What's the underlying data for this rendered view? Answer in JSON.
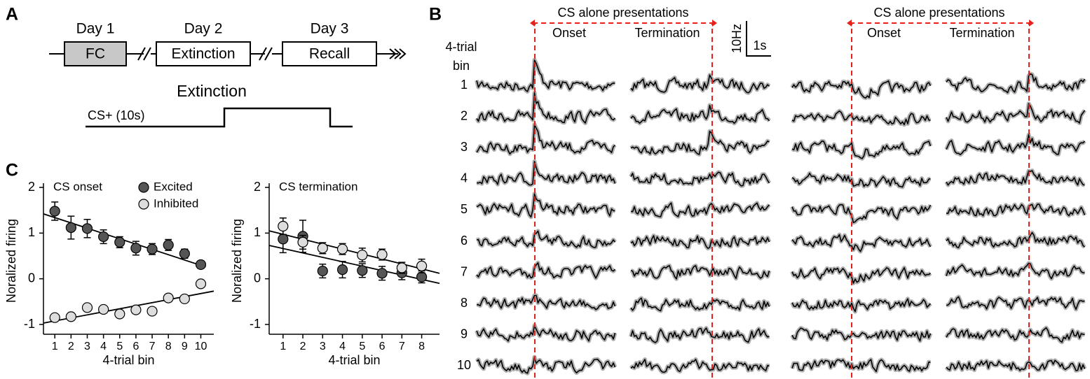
{
  "panel_a": {
    "label": "A",
    "days": [
      "Day 1",
      "Day 2",
      "Day 3"
    ],
    "boxes": [
      "FC",
      "Extinction",
      "Recall"
    ],
    "protocol_title": "Extinction",
    "cs_label": "CS+ (10s)"
  },
  "panel_b": {
    "label": "B",
    "bracket_title": "CS alone presentations",
    "onset": "Onset",
    "termination": "Termination",
    "scale_y": "10Hz",
    "scale_x": "1s",
    "row_title": [
      "4-trial",
      "bin"
    ],
    "rows": [
      "1",
      "2",
      "3",
      "4",
      "5",
      "6",
      "7",
      "8",
      "9",
      "10"
    ]
  },
  "panel_c_label": "C",
  "chart_data": [
    {
      "type": "scatter",
      "title": "CS onset",
      "x_label": "4-trial bin",
      "y_label": "Noralized firing",
      "x": [
        1,
        2,
        3,
        4,
        5,
        6,
        7,
        8,
        9,
        10
      ],
      "series": [
        {
          "name": "Excited",
          "color": "#555555",
          "values": [
            1.48,
            1.12,
            1.1,
            0.92,
            0.8,
            0.67,
            0.65,
            0.74,
            0.55,
            0.31
          ],
          "errors": [
            0.2,
            0.25,
            0.2,
            0.15,
            0.12,
            0.15,
            0.12,
            0.12,
            0.1,
            0.08
          ]
        },
        {
          "name": "Inhibited",
          "color": "#dddddd",
          "values": [
            -0.85,
            -0.83,
            -0.63,
            -0.67,
            -0.77,
            -0.68,
            -0.71,
            -0.42,
            -0.44,
            -0.11
          ],
          "errors": [
            0.04,
            0.05,
            0.04,
            0.04,
            0.04,
            0.04,
            0.04,
            0.04,
            0.04,
            0.05
          ]
        }
      ],
      "trendlines": [
        {
          "x": [
            0.3,
            10.3
          ],
          "values": [
            1.42,
            0.26
          ]
        },
        {
          "x": [
            0.3,
            10.8
          ],
          "values": [
            -0.97,
            -0.27
          ]
        }
      ],
      "xlim": [
        0.3,
        10.8
      ],
      "ylim": [
        -1,
        2
      ],
      "xticks": [
        1,
        2,
        3,
        4,
        5,
        6,
        7,
        8,
        9,
        10
      ],
      "yticks": [
        -1,
        0,
        1,
        2
      ],
      "legend": "upper right"
    },
    {
      "type": "scatter",
      "title": "CS termination",
      "x_label": "4-trial bin",
      "y_label": "Noralized firing",
      "x": [
        1,
        2,
        3,
        4,
        5,
        6,
        7,
        8
      ],
      "series": [
        {
          "color": "#555555",
          "values": [
            0.87,
            0.93,
            0.17,
            0.2,
            0.18,
            0.12,
            0.13,
            0.04
          ],
          "errors": [
            0.3,
            0.35,
            0.15,
            0.18,
            0.15,
            0.15,
            0.15,
            0.13
          ]
        },
        {
          "color": "#dddddd",
          "values": [
            1.15,
            0.8,
            0.67,
            0.65,
            0.52,
            0.53,
            0.24,
            0.28
          ],
          "errors": [
            0.18,
            0.15,
            0.12,
            0.12,
            0.15,
            0.12,
            0.12,
            0.15
          ]
        }
      ],
      "trendlines": [
        {
          "x": [
            0.3,
            8.9
          ],
          "values": [
            1.05,
            0.12
          ]
        },
        {
          "x": [
            0.3,
            8.9
          ],
          "values": [
            0.73,
            -0.1
          ]
        }
      ],
      "xlim": [
        0.3,
        8.9
      ],
      "ylim": [
        -1,
        2
      ],
      "xticks": [
        1,
        2,
        3,
        4,
        5,
        6,
        7,
        8
      ],
      "yticks": [
        -1,
        0,
        1,
        2
      ]
    }
  ]
}
